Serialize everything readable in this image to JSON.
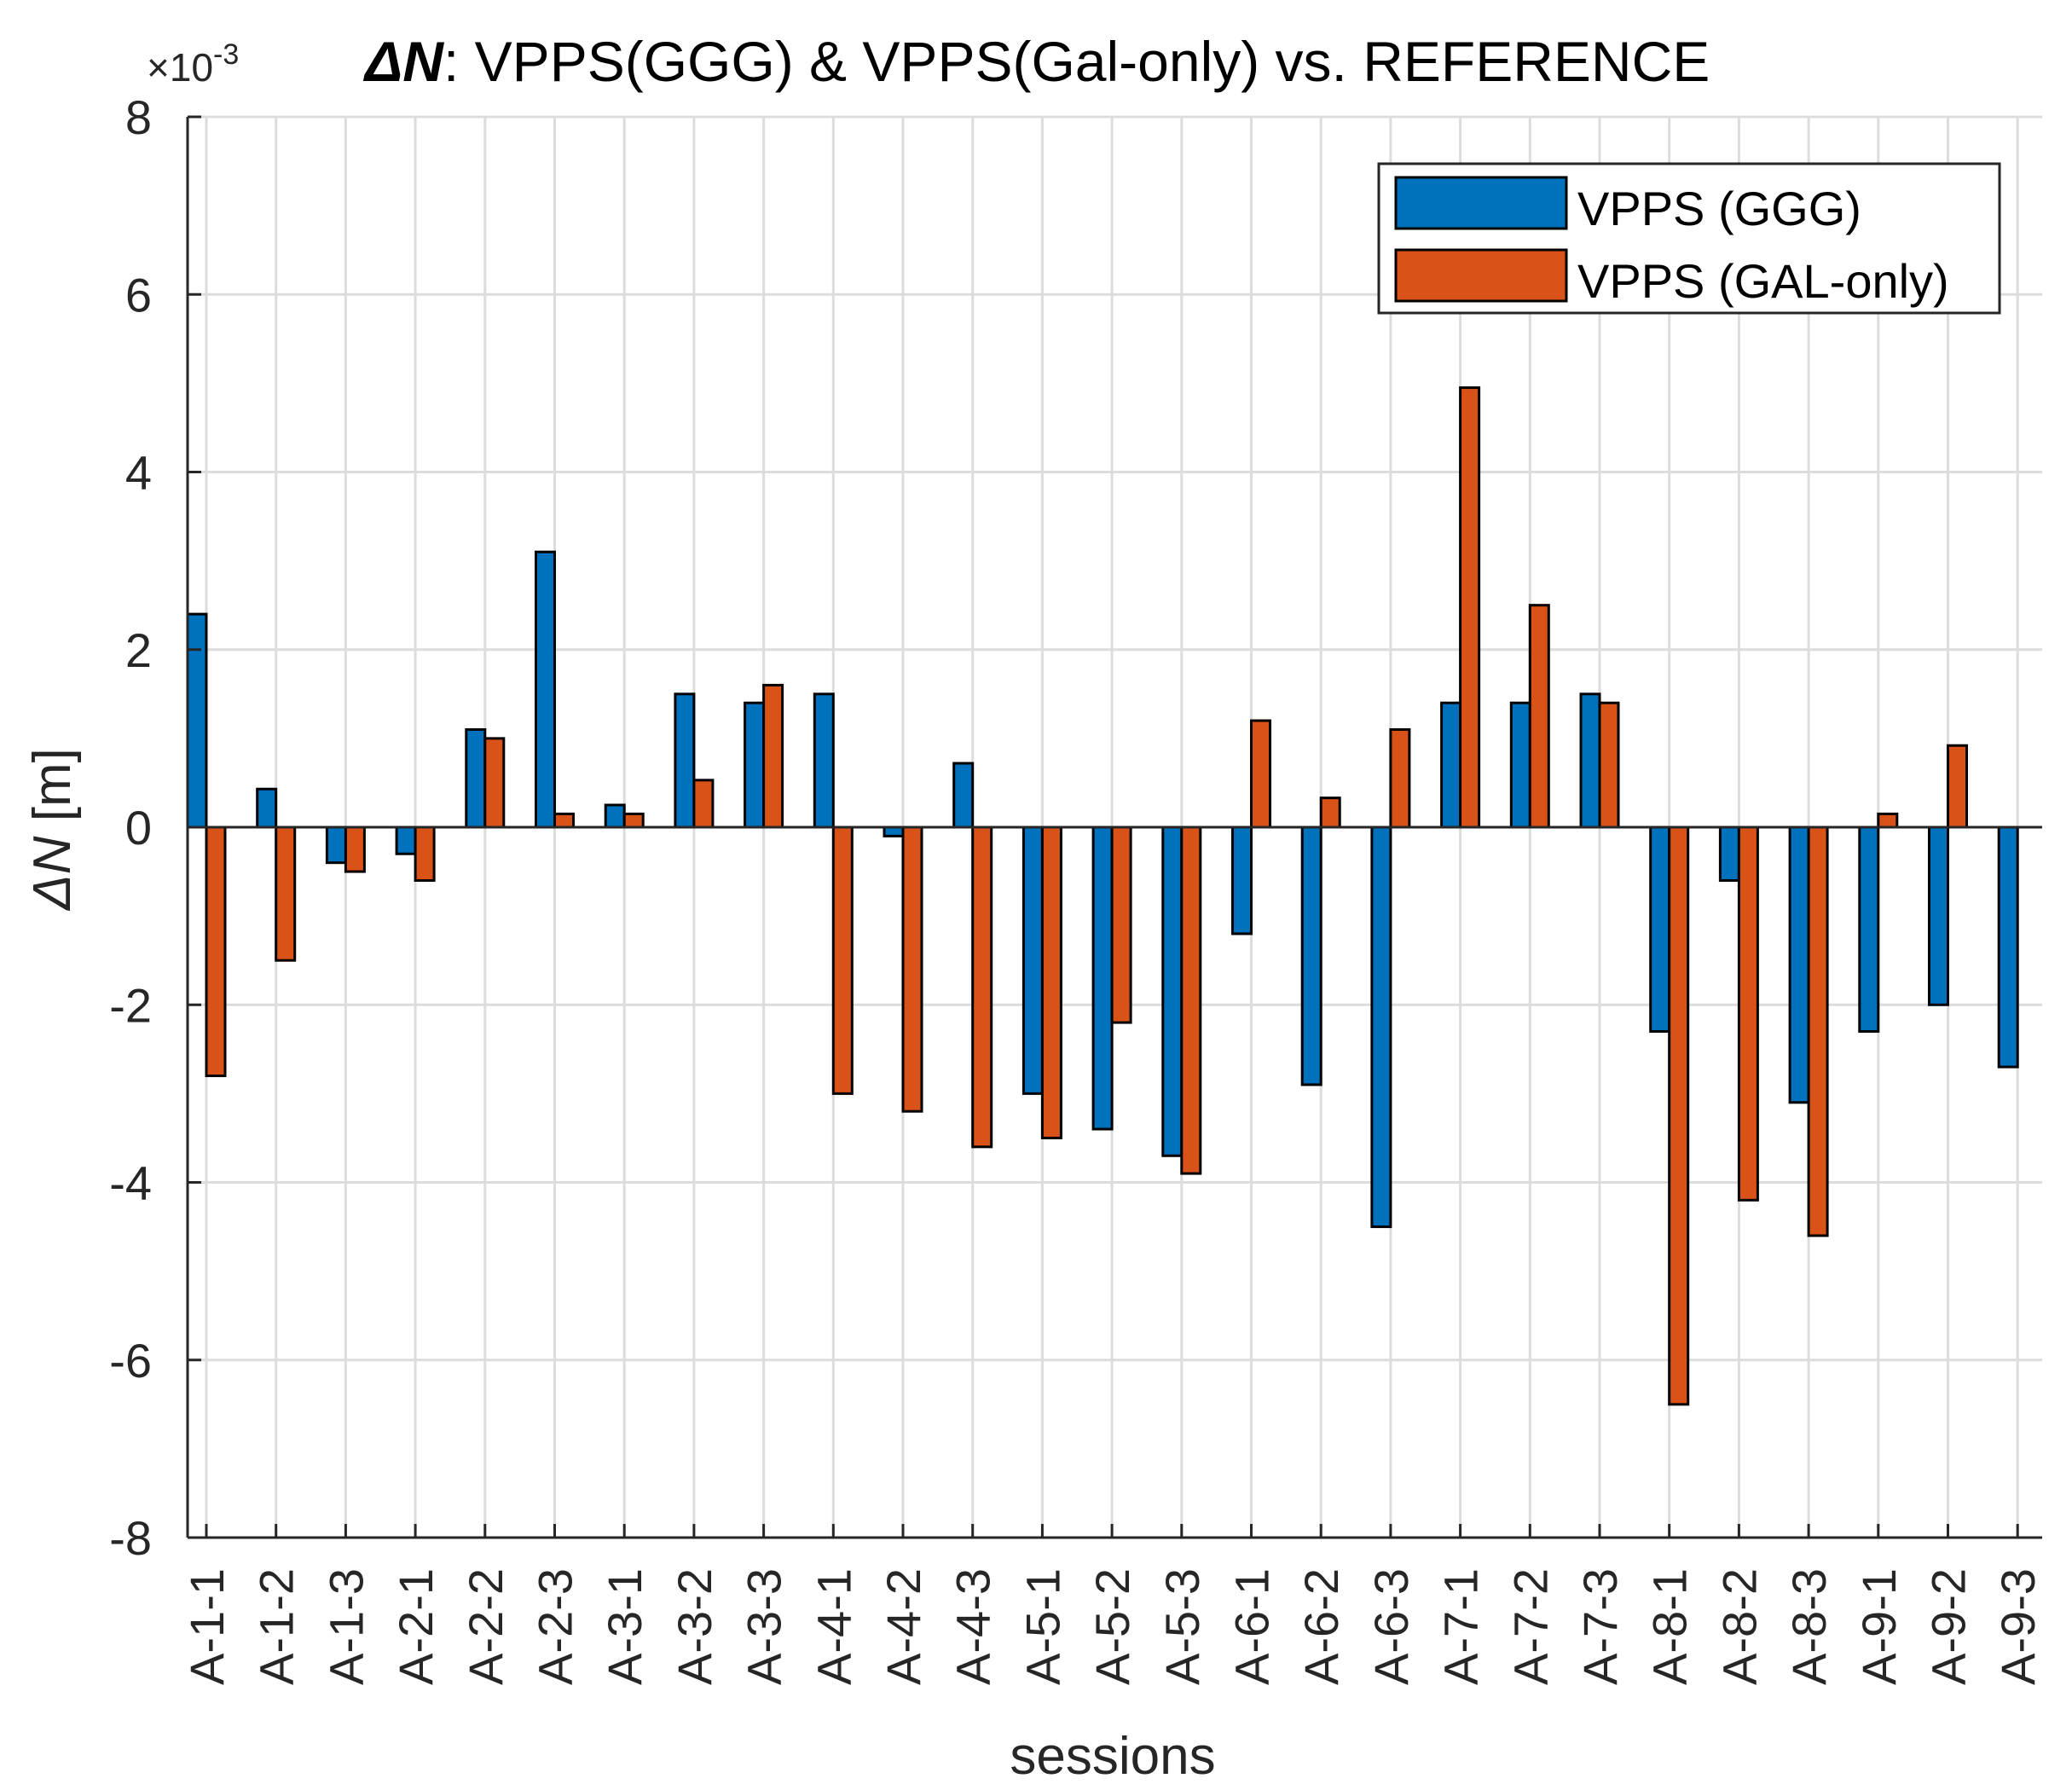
{
  "chart_data": {
    "type": "bar",
    "title_symbol": "ΔN",
    "title_rest": ": VPPS(GGG) & VPPS(Gal-only) vs. REFERENCE",
    "exponent_label": "×10",
    "exponent_power": "-3",
    "xlabel": "sessions",
    "ylabel_symbol": "ΔN",
    "ylabel_unit": " [m]",
    "ylim": [
      -8,
      8
    ],
    "yticks": [
      8,
      6,
      4,
      2,
      0,
      -2,
      -4,
      -6,
      -8
    ],
    "grid": true,
    "legend_position": "top-right",
    "categories": [
      "A-1-1",
      "A-1-2",
      "A-1-3",
      "A-2-1",
      "A-2-2",
      "A-2-3",
      "A-3-1",
      "A-3-2",
      "A-3-3",
      "A-4-1",
      "A-4-2",
      "A-4-3",
      "A-5-1",
      "A-5-2",
      "A-5-3",
      "A-6-1",
      "A-6-2",
      "A-6-3",
      "A-7-1",
      "A-7-2",
      "A-7-3",
      "A-8-1",
      "A-8-2",
      "A-8-3",
      "A-9-1",
      "A-9-2",
      "A-9-3"
    ],
    "series": [
      {
        "name": "VPPS (GGG)",
        "color": "#0072BD",
        "values": [
          2.4,
          0.43,
          -0.4,
          -0.3,
          1.1,
          3.1,
          0.25,
          1.5,
          1.4,
          1.5,
          -0.1,
          0.72,
          -3.0,
          -3.4,
          -3.7,
          -1.2,
          -2.9,
          -4.5,
          1.4,
          1.4,
          1.5,
          -2.3,
          -0.6,
          -3.1,
          -2.3,
          -2.0,
          -2.7
        ]
      },
      {
        "name": "VPPS (GAL-only)",
        "color": "#D95319",
        "values": [
          -2.8,
          -1.5,
          -0.5,
          -0.6,
          1.0,
          0.15,
          0.15,
          0.53,
          1.6,
          -3.0,
          -3.2,
          -3.6,
          -3.5,
          -2.2,
          -3.9,
          1.2,
          0.33,
          1.1,
          4.95,
          2.5,
          1.4,
          -6.5,
          -4.2,
          -4.6,
          0.15,
          0.92,
          0
        ]
      }
    ]
  }
}
